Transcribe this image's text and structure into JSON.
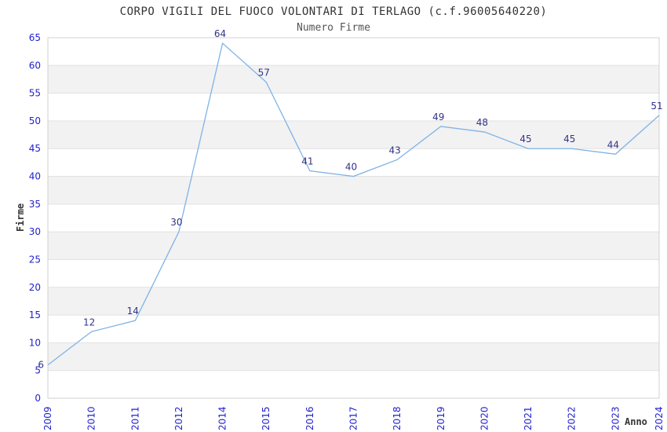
{
  "header": {
    "title": "CORPO VIGILI DEL FUOCO VOLONTARI DI TERLAGO (c.f.96005640220)",
    "subtitle": "Numero Firme"
  },
  "chart_data": {
    "type": "line",
    "title": "CORPO VIGILI DEL FUOCO VOLONTARI DI TERLAGO (c.f.96005640220)",
    "subtitle": "Numero Firme",
    "xlabel": "Anno",
    "ylabel": "Firme",
    "categories": [
      "2009",
      "2010",
      "2011",
      "2012",
      "2014",
      "2015",
      "2016",
      "2017",
      "2018",
      "2019",
      "2020",
      "2021",
      "2022",
      "2023",
      "2024"
    ],
    "values": [
      6,
      12,
      14,
      30,
      64,
      57,
      41,
      40,
      43,
      49,
      48,
      45,
      45,
      44,
      51
    ],
    "show_data_labels": true,
    "ylim": [
      0,
      65
    ],
    "yticks": [
      0,
      5,
      10,
      15,
      20,
      25,
      30,
      35,
      40,
      45,
      50,
      55,
      60,
      65
    ],
    "grid": "horizontal-with-alternating-bands",
    "legend": "none",
    "colors": {
      "line": "#7fb3e6",
      "tick_label": "#2222cc",
      "data_label": "#333388",
      "title": "#333333",
      "subtitle": "#555555",
      "axis_title": "#333333",
      "band_alt": "#f2f2f2",
      "gridline": "#e2e2e2",
      "border": "#d0d0d0",
      "background": "#ffffff"
    }
  }
}
